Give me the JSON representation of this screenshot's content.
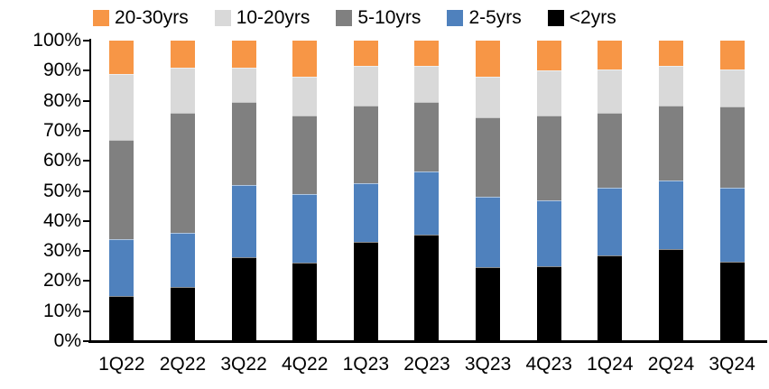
{
  "chart_data": {
    "type": "bar",
    "subtype": "stacked-100-percent",
    "title": "",
    "xlabel": "",
    "ylabel": "",
    "categories": [
      "1Q22",
      "2Q22",
      "3Q22",
      "4Q22",
      "1Q23",
      "2Q23",
      "3Q23",
      "4Q23",
      "1Q24",
      "2Q24",
      "3Q24"
    ],
    "series": [
      {
        "name": "<2yrs",
        "color": "#000000",
        "values": [
          15,
          18,
          28,
          26,
          33,
          35.5,
          24.5,
          25,
          28.5,
          30.5,
          26.5
        ]
      },
      {
        "name": "2-5yrs",
        "color": "#4F81BD",
        "values": [
          19,
          18,
          24,
          23,
          19.5,
          21,
          23.5,
          22,
          22.5,
          23,
          24.5
        ]
      },
      {
        "name": "5-10yrs",
        "color": "#808080",
        "values": [
          33,
          40,
          27.5,
          26,
          26,
          23,
          26.5,
          28,
          25,
          25,
          27
        ]
      },
      {
        "name": "10-20yrs",
        "color": "#D9D9D9",
        "values": [
          22,
          15,
          11.5,
          13,
          13,
          12,
          13.5,
          15,
          14.5,
          13,
          12.5
        ]
      },
      {
        "name": "20-30yrs",
        "color": "#F79646",
        "values": [
          11,
          9,
          9,
          12,
          8.5,
          8.5,
          12,
          10,
          9.5,
          8.5,
          9.5
        ]
      }
    ],
    "stack_order": "bottom-to-top",
    "legend": [
      {
        "label": "20-30yrs",
        "color": "#F79646"
      },
      {
        "label": "10-20yrs",
        "color": "#D9D9D9"
      },
      {
        "label": "5-10yrs",
        "color": "#808080"
      },
      {
        "label": "2-5yrs",
        "color": "#4F81BD"
      },
      {
        "label": "<2yrs",
        "color": "#000000"
      }
    ],
    "legend_position": "top",
    "y_ticks": [
      "0%",
      "10%",
      "20%",
      "30%",
      "40%",
      "50%",
      "60%",
      "70%",
      "80%",
      "90%",
      "100%"
    ],
    "ylim": [
      0,
      100
    ],
    "grid": false,
    "axis_color": "#000000"
  }
}
